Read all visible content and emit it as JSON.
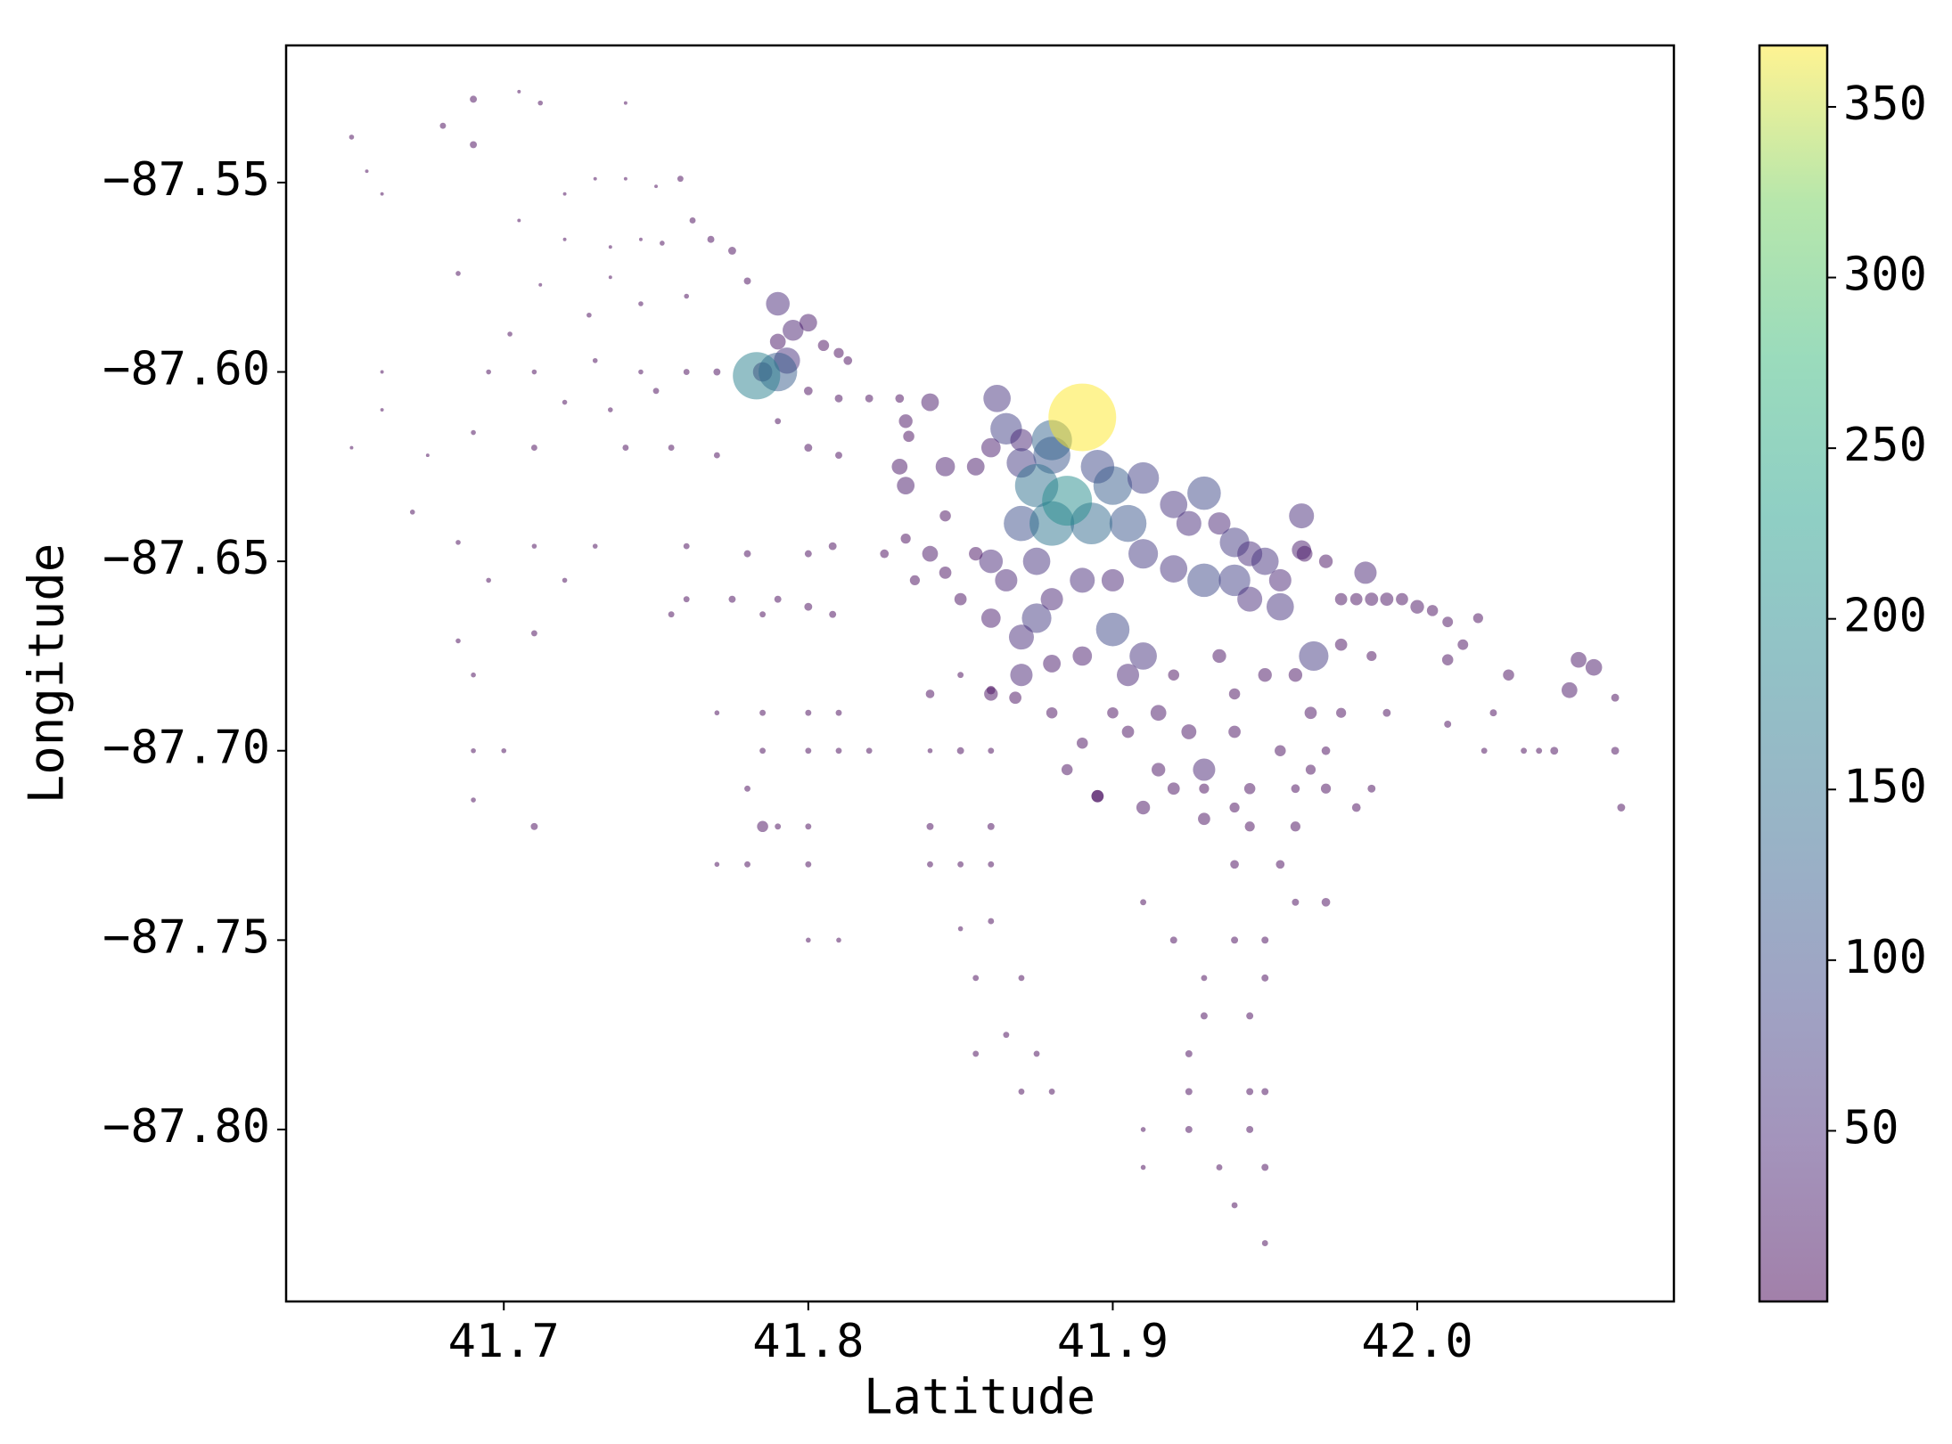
{
  "chart_data": {
    "type": "scatter",
    "xlabel": "Latitude",
    "ylabel": "Longitude",
    "xlim": [
      41.6285,
      42.0843
    ],
    "ylim": [
      -87.8454,
      -87.5138
    ],
    "xticks": [
      41.7,
      41.8,
      41.9,
      {
        "value": 42.0,
        "label": "42.0"
      }
    ],
    "yticks": [
      {
        "value": -87.55,
        "label": "−87.55"
      },
      {
        "value": -87.6,
        "label": "−87.60"
      },
      {
        "value": -87.65,
        "label": "−87.65"
      },
      {
        "value": -87.7,
        "label": "−87.70"
      },
      {
        "value": -87.75,
        "label": "−87.75"
      },
      {
        "value": -87.8,
        "label": "−87.80"
      }
    ],
    "cmap": "viridis",
    "alpha": 0.5,
    "clim": [
      0,
      368
    ],
    "cticks": [
      50,
      100,
      150,
      200,
      250,
      300,
      350
    ],
    "x": [
      41.655,
      41.66,
      41.65,
      41.69,
      41.705,
      41.712,
      41.74,
      41.68,
      41.69,
      41.72,
      41.73,
      41.74,
      41.75,
      41.758,
      41.762,
      41.768,
      41.775,
      41.705,
      41.72,
      41.735,
      41.745,
      41.752,
      41.685,
      41.712,
      41.735,
      41.78,
      41.76,
      41.702,
      41.728,
      41.745,
      41.66,
      41.695,
      41.71,
      41.73,
      41.745,
      41.76,
      41.77,
      41.66,
      41.65,
      41.675,
      41.69,
      41.72,
      41.735,
      41.75,
      41.67,
      41.71,
      41.74,
      41.755,
      41.77,
      41.79,
      41.8,
      41.81,
      41.685,
      41.71,
      41.73,
      41.76,
      41.78,
      41.8,
      41.808,
      41.695,
      41.72,
      41.76,
      41.775,
      41.79,
      41.8,
      41.685,
      41.71,
      41.755,
      41.785,
      41.808,
      41.69,
      41.77,
      41.785,
      41.8,
      41.81,
      41.69,
      41.7,
      41.785,
      41.8,
      41.81,
      41.82,
      41.69,
      41.71,
      41.78,
      41.79,
      41.785,
      41.8,
      41.77,
      41.78,
      41.8,
      41.8,
      41.81,
      41.84,
      41.85,
      41.86,
      41.84,
      41.86,
      41.85,
      41.84,
      41.86,
      41.85,
      41.84,
      41.86,
      41.85,
      41.86,
      41.855,
      41.87,
      41.865,
      41.875,
      41.855,
      41.87,
      41.88,
      41.91,
      41.92,
      41.93,
      41.94,
      41.95,
      41.96,
      41.93,
      41.945,
      41.95,
      41.925,
      41.945,
      41.925,
      41.95,
      41.925,
      41.945,
      41.91,
      41.91,
      41.935,
      41.95,
      41.94,
      41.95,
      41.94,
      41.955,
      41.945,
      41.96,
      41.97,
      41.97,
      41.98,
      41.93,
      41.945,
      41.955,
      41.965,
      41.915,
      41.93,
      41.92,
      41.915,
      41.925,
      41.94,
      41.905,
      41.9,
      41.895,
      41.79,
      41.795,
      41.8,
      41.79,
      41.785,
      41.805,
      41.81,
      41.813,
      41.8,
      41.81,
      41.82,
      41.83,
      41.84,
      41.832,
      41.845,
      41.833,
      41.793,
      41.79,
      41.783,
      41.92,
      41.925,
      41.93,
      41.935,
      41.94,
      41.945,
      41.95,
      41.955,
      41.962,
      41.91,
      41.92,
      41.93,
      41.94,
      41.945,
      41.955,
      41.966,
      41.875,
      41.87,
      41.88,
      41.89,
      41.9,
      41.9,
      41.91,
      41.905,
      41.89,
      41.88,
      41.86,
      41.86,
      41.963,
      41.97,
      41.975,
      41.98,
      41.985,
      41.99,
      41.995,
      42.0,
      42.005,
      42.01,
      42.02,
      42.015,
      42.01,
      41.983,
      41.962,
      42.03,
      42.05,
      42.053,
      42.058,
      42.065,
      42.045,
      42.065,
      42.067,
      42.022,
      42.035,
      42.04,
      42.025,
      42.01,
      41.99,
      41.985,
      41.83,
      41.832,
      41.845,
      41.84,
      41.845,
      41.835,
      41.855,
      41.832,
      41.825,
      41.85,
      41.87,
      41.86,
      41.868,
      41.88,
      41.89,
      41.885,
      41.895,
      41.91,
      41.93,
      41.94,
      41.96,
      41.97,
      41.975,
      41.95,
      41.96,
      41.965,
      41.94,
      41.935,
      41.92,
      41.975,
      41.985,
      41.862,
      41.865,
      41.87,
      41.86,
      41.855,
      41.87,
      41.88,
      41.875,
      41.895,
      41.9,
      41.91,
      41.905,
      41.87,
      41.875,
      41.865,
      41.88,
      41.893,
      41.885,
      41.88,
      41.89
    ],
    "values": [
      -87.547,
      -87.553,
      -87.538,
      -87.528,
      -87.526,
      -87.529,
      -87.529,
      -87.535,
      -87.54,
      -87.553,
      -87.549,
      -87.549,
      -87.551,
      -87.549,
      -87.56,
      -87.565,
      -87.568,
      -87.56,
      -87.565,
      -87.567,
      -87.565,
      -87.566,
      -87.574,
      -87.577,
      -87.575,
      -87.576,
      -87.58,
      -87.59,
      -87.585,
      -87.582,
      -87.6,
      -87.6,
      -87.6,
      -87.597,
      -87.6,
      -87.6,
      -87.6,
      -87.61,
      -87.62,
      -87.622,
      -87.616,
      -87.608,
      -87.61,
      -87.605,
      -87.637,
      -87.62,
      -87.62,
      -87.62,
      -87.622,
      -87.613,
      -87.62,
      -87.622,
      -87.645,
      -87.646,
      -87.646,
      -87.646,
      -87.648,
      -87.648,
      -87.646,
      -87.655,
      -87.655,
      -87.66,
      -87.66,
      -87.66,
      -87.662,
      -87.671,
      -87.669,
      -87.664,
      -87.664,
      -87.664,
      -87.68,
      -87.69,
      -87.69,
      -87.69,
      -87.69,
      -87.7,
      -87.7,
      -87.7,
      -87.7,
      -87.7,
      -87.7,
      -87.713,
      -87.72,
      -87.71,
      -87.72,
      -87.72,
      -87.72,
      -87.73,
      -87.73,
      -87.73,
      -87.75,
      -87.75,
      -87.73,
      -87.73,
      -87.73,
      -87.72,
      -87.72,
      -87.7,
      -87.7,
      -87.7,
      -87.68,
      -87.685,
      -87.684,
      -87.747,
      -87.745,
      -87.76,
      -87.76,
      -87.775,
      -87.78,
      -87.78,
      -87.79,
      -87.79,
      -87.74,
      -87.75,
      -87.76,
      -87.75,
      -87.75,
      -87.74,
      -87.77,
      -87.77,
      -87.76,
      -87.78,
      -87.79,
      -87.79,
      -87.79,
      -87.8,
      -87.8,
      -87.8,
      -87.81,
      -87.81,
      -87.81,
      -87.82,
      -87.83,
      -87.73,
      -87.73,
      -87.72,
      -87.72,
      -87.74,
      -87.71,
      -87.715,
      -87.71,
      -87.71,
      -87.7,
      -87.705,
      -87.705,
      -87.705,
      -87.71,
      -87.69,
      -87.695,
      -87.695,
      -87.695,
      -87.69,
      -87.712,
      -87.582,
      -87.589,
      -87.587,
      -87.592,
      -87.6,
      -87.593,
      -87.595,
      -87.597,
      -87.605,
      -87.607,
      -87.607,
      -87.607,
      -87.608,
      -87.613,
      -87.625,
      -87.617,
      -87.597,
      -87.6,
      -87.601,
      -87.635,
      -87.64,
      -87.632,
      -87.64,
      -87.645,
      -87.648,
      -87.65,
      -87.655,
      -87.638,
      -87.648,
      -87.652,
      -87.655,
      -87.655,
      -87.66,
      -87.662,
      -87.675,
      -87.665,
      -87.67,
      -87.66,
      -87.655,
      -87.655,
      -87.668,
      -87.675,
      -87.68,
      -87.675,
      -87.677,
      -87.65,
      -87.665,
      -87.648,
      -87.65,
      -87.66,
      -87.66,
      -87.66,
      -87.66,
      -87.66,
      -87.662,
      -87.663,
      -87.666,
      -87.665,
      -87.672,
      -87.676,
      -87.653,
      -87.647,
      -87.68,
      -87.684,
      -87.676,
      -87.678,
      -87.686,
      -87.7,
      -87.7,
      -87.715,
      -87.7,
      -87.7,
      -87.7,
      -87.69,
      -87.693,
      -87.69,
      -87.71,
      -87.625,
      -87.63,
      -87.638,
      -87.648,
      -87.653,
      -87.655,
      -87.648,
      -87.644,
      -87.648,
      -87.66,
      -87.68,
      -87.685,
      -87.686,
      -87.69,
      -87.698,
      -87.705,
      -87.712,
      -87.715,
      -87.718,
      -87.715,
      -87.71,
      -87.7,
      -87.69,
      -87.68,
      -87.68,
      -87.69,
      -87.685,
      -87.675,
      -87.68,
      -87.672,
      -87.675,
      -87.607,
      -87.615,
      -87.618,
      -87.62,
      -87.625,
      -87.624,
      -87.622,
      -87.63,
      -87.625,
      -87.63,
      -87.628,
      -87.64,
      -87.64,
      -87.65,
      -87.655,
      -87.64,
      -87.64,
      -87.634,
      -87.618,
      -87.612
    ],
    "sizes": [
      1,
      1,
      2,
      4,
      1,
      2,
      1,
      3,
      4,
      1,
      1,
      1,
      1,
      3,
      3,
      4,
      5,
      1,
      1,
      1,
      1,
      2,
      2,
      1,
      1,
      4,
      2,
      2,
      2,
      2,
      1,
      2,
      2,
      2,
      2,
      3,
      4,
      1,
      1,
      1,
      2,
      2,
      2,
      3,
      2,
      3,
      3,
      3,
      3,
      3,
      5,
      4,
      2,
      2,
      2,
      3,
      4,
      4,
      5,
      2,
      2,
      3,
      4,
      4,
      5,
      2,
      3,
      3,
      3,
      4,
      2,
      2,
      3,
      3,
      3,
      2,
      2,
      3,
      3,
      3,
      3,
      2,
      4,
      3,
      3,
      10,
      3,
      2,
      3,
      3,
      2,
      2,
      3,
      3,
      3,
      4,
      4,
      4,
      2,
      3,
      3,
      6,
      6,
      2,
      3,
      3,
      3,
      3,
      3,
      3,
      3,
      3,
      3,
      4,
      3,
      4,
      4,
      4,
      4,
      4,
      4,
      4,
      4,
      4,
      4,
      4,
      4,
      2,
      2,
      3,
      4,
      3,
      3,
      6,
      6,
      8,
      8,
      6,
      8,
      6,
      8,
      10,
      10,
      8,
      15,
      40,
      12,
      20,
      18,
      12,
      12,
      10,
      12,
      45,
      35,
      25,
      20,
      30,
      10,
      8,
      6,
      6,
      5,
      5,
      6,
      25,
      15,
      30,
      10,
      55,
      120,
      180,
      60,
      50,
      90,
      40,
      70,
      50,
      60,
      40,
      50,
      70,
      60,
      90,
      80,
      50,
      60,
      70,
      70,
      50,
      40,
      50,
      40,
      90,
      60,
      40,
      30,
      25,
      45,
      30,
      20,
      15,
      12,
      12,
      14,
      14,
      12,
      15,
      10,
      9,
      8,
      9,
      10,
      40,
      30,
      10,
      20,
      20,
      22,
      5,
      5,
      5,
      5,
      3,
      3,
      3,
      4,
      4,
      5,
      5,
      20,
      25,
      10,
      20,
      12,
      8,
      15,
      8,
      6,
      12,
      40,
      15,
      12,
      10,
      10,
      10,
      12,
      15,
      12,
      8,
      6,
      6,
      8,
      15,
      15,
      12,
      10,
      15,
      10,
      12,
      8,
      60,
      80,
      40,
      30,
      25,
      70,
      110,
      150,
      90,
      120,
      80,
      110,
      100,
      60,
      40,
      160,
      140,
      200,
      130,
      368
    ]
  }
}
